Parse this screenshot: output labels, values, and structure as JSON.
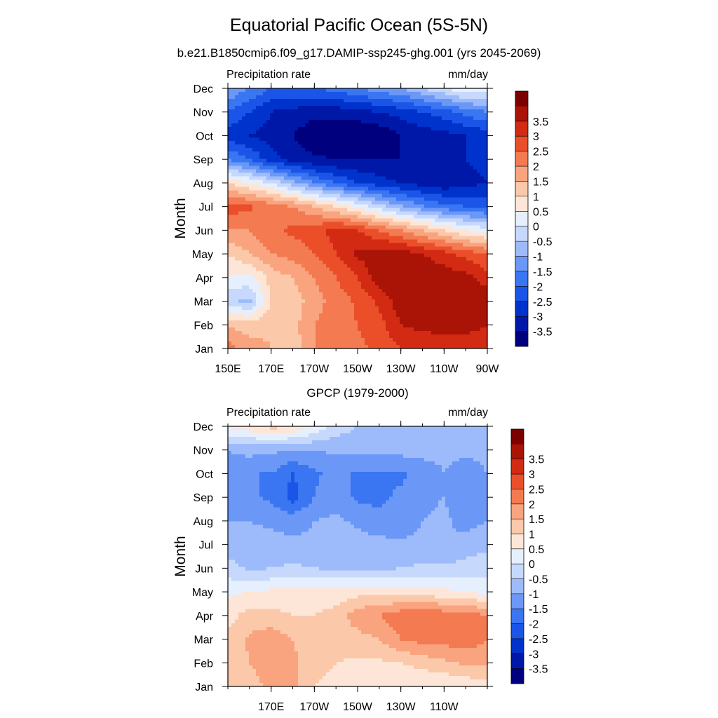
{
  "figure": {
    "title": "Equatorial Pacific Ocean (5S-5N)",
    "subtitle": "b.e21.B1850cmip6.f09_g17.DAMIP-ssp245-ghg.001 (yrs 2045-2069)"
  },
  "colorbar": {
    "colors": [
      "#00007f",
      "#0018a8",
      "#0033cc",
      "#1a55e8",
      "#3a75f2",
      "#6b97f7",
      "#9dbbfa",
      "#c6d9fc",
      "#e6effd",
      "#fde6d7",
      "#fcc8aa",
      "#f9a47f",
      "#f47a52",
      "#ea4f2a",
      "#d32a13",
      "#aa1407",
      "#7c0000"
    ],
    "levels": [
      "-3.5",
      "-3",
      "-2.5",
      "-2",
      "-1.5",
      "-1",
      "-0.5",
      "0",
      "0.5",
      "1",
      "1.5",
      "2",
      "2.5",
      "3",
      "3.5"
    ]
  },
  "chart_data": [
    {
      "type": "heatmap",
      "panel_title": "",
      "left_string": "Precipitation rate",
      "right_string": "mm/day",
      "ylabel": "Month",
      "xlabel": "",
      "x_ticks": [
        "150E",
        "170E",
        "170W",
        "150W",
        "130W",
        "110W",
        "90W"
      ],
      "x_tick_values": [
        150,
        170,
        190,
        210,
        230,
        250,
        270
      ],
      "xlim": [
        150,
        270
      ],
      "y_ticks": [
        "Jan",
        "Feb",
        "Mar",
        "Apr",
        "May",
        "Jun",
        "Jul",
        "Aug",
        "Sep",
        "Oct",
        "Nov",
        "Dec"
      ],
      "ylim": [
        1,
        12
      ],
      "x": [
        150,
        160,
        170,
        180,
        190,
        200,
        210,
        220,
        230,
        240,
        250,
        260,
        270
      ],
      "y": [
        1,
        2,
        3,
        4,
        5,
        6,
        7,
        8,
        9,
        10,
        11,
        12
      ],
      "values": [
        [
          2.2,
          1.8,
          1.5,
          1.2,
          2.0,
          2.3,
          2.4,
          2.6,
          3.0,
          3.0,
          3.0,
          3.0,
          3.0
        ],
        [
          1.5,
          1.2,
          1.4,
          1.3,
          2.0,
          2.3,
          2.5,
          2.8,
          3.5,
          3.7,
          3.8,
          3.8,
          3.5
        ],
        [
          -0.4,
          -0.6,
          1.0,
          1.2,
          1.8,
          2.2,
          2.6,
          3.1,
          3.8,
          3.9,
          3.9,
          4.0,
          4.0
        ],
        [
          0.5,
          0.3,
          1.2,
          1.5,
          2.0,
          2.5,
          3.0,
          3.8,
          3.9,
          3.9,
          3.8,
          3.7,
          3.2
        ],
        [
          1.0,
          1.5,
          2.0,
          2.2,
          2.5,
          3.0,
          3.6,
          3.8,
          3.8,
          3.5,
          3.2,
          2.8,
          2.5
        ],
        [
          2.0,
          2.0,
          2.4,
          2.6,
          2.8,
          3.2,
          3.0,
          2.5,
          2.0,
          1.5,
          1.0,
          0.5,
          0.2
        ],
        [
          2.8,
          2.6,
          2.3,
          2.0,
          1.5,
          1.0,
          0.4,
          -0.3,
          -0.9,
          -1.4,
          -1.8,
          -2.0,
          -2.2
        ],
        [
          1.0,
          0.5,
          0.0,
          -0.8,
          -1.5,
          -2.0,
          -2.5,
          -2.8,
          -3.0,
          -3.2,
          -3.4,
          -3.2,
          -3.0
        ],
        [
          -1.5,
          -2.0,
          -2.8,
          -3.2,
          -3.4,
          -3.5,
          -3.5,
          -3.5,
          -3.5,
          -3.5,
          -3.3,
          -3.0,
          -2.8
        ],
        [
          -2.8,
          -3.0,
          -3.2,
          -3.5,
          -3.9,
          -4.0,
          -4.0,
          -3.9,
          -3.5,
          -3.3,
          -3.2,
          -3.0,
          -2.8
        ],
        [
          -2.0,
          -2.5,
          -3.0,
          -3.2,
          -3.3,
          -3.3,
          -3.2,
          -3.0,
          -2.8,
          -2.5,
          -2.2,
          -1.8,
          -1.5
        ],
        [
          -1.0,
          -1.5,
          -2.0,
          -2.0,
          -2.0,
          -1.8,
          -1.5,
          -1.2,
          -1.0,
          -0.5,
          0.0,
          0.5,
          0.3
        ]
      ]
    },
    {
      "type": "heatmap",
      "panel_title": "GPCP (1979-2000)",
      "left_string": "Precipitation rate",
      "right_string": "mm/day",
      "ylabel": "Month",
      "xlabel": "",
      "x_ticks": [
        "170E",
        "170W",
        "150W",
        "130W",
        "110W"
      ],
      "x_tick_values": [
        170,
        190,
        210,
        230,
        250
      ],
      "xlim": [
        150,
        270
      ],
      "y_ticks": [
        "Jan",
        "Feb",
        "Mar",
        "Apr",
        "May",
        "Jun",
        "Jul",
        "Aug",
        "Sep",
        "Oct",
        "Nov",
        "Dec"
      ],
      "ylim": [
        1,
        12
      ],
      "x": [
        150,
        160,
        170,
        180,
        190,
        200,
        210,
        220,
        230,
        240,
        250,
        260,
        270
      ],
      "y": [
        1,
        2,
        3,
        4,
        5,
        6,
        7,
        8,
        9,
        10,
        11,
        12
      ],
      "values": [
        [
          1.2,
          1.3,
          1.6,
          1.7,
          1.0,
          0.8,
          0.6,
          0.5,
          0.5,
          0.5,
          0.5,
          0.6,
          0.8
        ],
        [
          1.0,
          1.5,
          1.8,
          1.6,
          1.2,
          1.0,
          0.9,
          0.9,
          1.0,
          1.2,
          1.4,
          1.6,
          1.6
        ],
        [
          1.1,
          1.6,
          1.8,
          1.5,
          1.2,
          1.2,
          1.3,
          1.5,
          2.0,
          2.2,
          2.2,
          2.3,
          2.0
        ],
        [
          0.8,
          1.2,
          1.2,
          1.0,
          1.0,
          1.2,
          1.8,
          2.0,
          2.3,
          2.5,
          2.3,
          2.2,
          2.0
        ],
        [
          0.4,
          0.5,
          0.6,
          0.6,
          0.6,
          0.7,
          0.8,
          0.8,
          0.8,
          0.7,
          0.6,
          0.5,
          0.3
        ],
        [
          -0.3,
          -0.6,
          -0.5,
          -0.4,
          -0.5,
          -0.6,
          -0.6,
          -0.6,
          -0.5,
          -0.4,
          -0.4,
          -0.3,
          -0.2
        ],
        [
          -0.8,
          -0.8,
          -0.8,
          -0.9,
          -0.9,
          -0.8,
          -0.8,
          -0.8,
          -0.9,
          -0.9,
          -1.0,
          -0.8,
          -0.6
        ],
        [
          -1.0,
          -1.0,
          -1.1,
          -1.2,
          -1.0,
          -0.9,
          -1.1,
          -1.4,
          -1.3,
          -1.0,
          -0.9,
          -1.2,
          -1.0
        ],
        [
          -1.2,
          -1.4,
          -1.6,
          -2.2,
          -1.5,
          -1.2,
          -1.6,
          -1.6,
          -1.4,
          -1.1,
          -1.0,
          -1.4,
          -1.2
        ],
        [
          -1.3,
          -1.5,
          -1.5,
          -2.0,
          -1.6,
          -1.3,
          -1.6,
          -1.6,
          -1.6,
          -1.3,
          -1.0,
          -1.2,
          -1.0
        ],
        [
          -1.0,
          -0.8,
          -0.9,
          -1.0,
          -1.0,
          -0.9,
          -0.9,
          -0.8,
          -0.8,
          -0.8,
          -0.9,
          -0.9,
          -0.9
        ],
        [
          0.6,
          0.8,
          1.2,
          1.0,
          0.4,
          -0.2,
          -0.5,
          -0.6,
          -0.7,
          -0.7,
          -0.7,
          -0.7,
          -0.6
        ]
      ]
    }
  ]
}
